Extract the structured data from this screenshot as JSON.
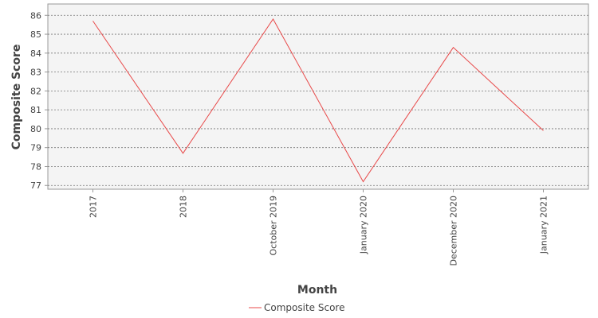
{
  "chart_data": {
    "type": "line",
    "title": "",
    "xlabel": "Month",
    "ylabel": "Composite Score",
    "categories": [
      "2017",
      "2018",
      "October 2019",
      "January 2020",
      "December 2020",
      "January 2021"
    ],
    "series": [
      {
        "name": "Composite Score",
        "values": [
          85.7,
          78.7,
          85.8,
          77.2,
          84.3,
          79.9
        ],
        "color": "#e84a4a"
      }
    ],
    "ylim": [
      76.8,
      86.6
    ],
    "yticks": [
      77,
      78,
      79,
      80,
      81,
      82,
      83,
      84,
      85,
      86
    ],
    "grid": true,
    "legend": "bottom-center",
    "plot_background": "#f4f4f4",
    "grid_color": "#777777"
  }
}
